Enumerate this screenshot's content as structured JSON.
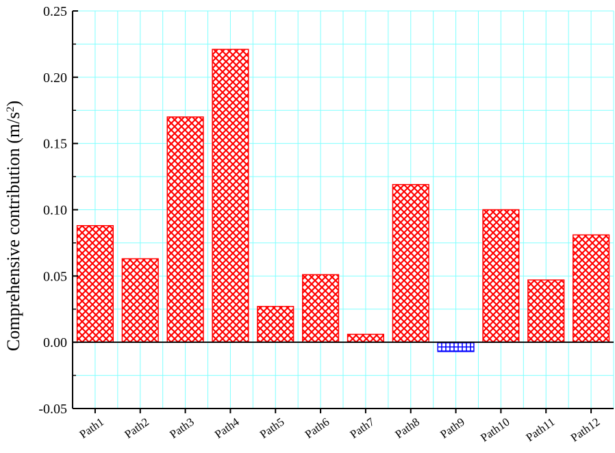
{
  "chart_data": {
    "type": "bar",
    "title": "",
    "xlabel": "",
    "ylabel": "Comprehensive contribution (m/s²)",
    "ylabel_parts": {
      "main": "Comprehensive contribution (m/s",
      "superscript": "2",
      "close": ")"
    },
    "ylim": [
      -0.05,
      0.25
    ],
    "yticks": [
      -0.05,
      0.0,
      0.05,
      0.1,
      0.15,
      0.2,
      0.25
    ],
    "ytick_labels": [
      "-0.05",
      "0.00",
      "0.05",
      "0.10",
      "0.15",
      "0.20",
      "0.25"
    ],
    "grid": true,
    "categories": [
      "Path1",
      "Path2",
      "Path3",
      "Path4",
      "Path5",
      "Path6",
      "Path7",
      "Path8",
      "Path9",
      "Path10",
      "Path11",
      "Path12"
    ],
    "values": [
      0.088,
      0.063,
      0.17,
      0.221,
      0.027,
      0.051,
      0.006,
      0.119,
      -0.007,
      0.1,
      0.047,
      0.081
    ],
    "colors": {
      "positive": "#ff0000",
      "negative": "#0000ff",
      "grid": "#7fffff",
      "axis": "#000000",
      "background": "#ffffff"
    }
  }
}
